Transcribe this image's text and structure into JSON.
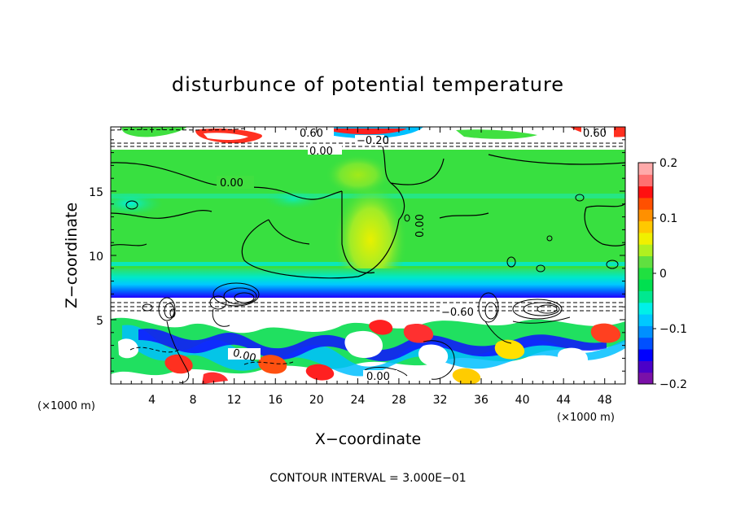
{
  "chart_data": {
    "type": "heatmap",
    "title": "disturbunce of potential temperature",
    "xlabel": "X−coordinate",
    "ylabel": "Z−coordinate",
    "x_unit_label": "(×1000 m)",
    "x_unit_label_right": "(×1000 m)",
    "xlim": [
      0,
      50
    ],
    "ylim": [
      0,
      20
    ],
    "xticks": [
      4,
      8,
      12,
      16,
      20,
      24,
      28,
      32,
      36,
      40,
      44,
      48
    ],
    "yticks": [
      5,
      10,
      15
    ],
    "colorbar": {
      "range": [
        -0.2,
        0.2
      ],
      "ticks": [
        "0.2",
        "0.1",
        "0",
        "−0.1",
        "−0.2"
      ],
      "ticks_values": [
        0.2,
        0.1,
        0,
        -0.1,
        -0.2
      ],
      "colors": [
        "#7a10a8",
        "#4b00c8",
        "#0000ff",
        "#0050ff",
        "#0090ff",
        "#00c8ff",
        "#00f0e8",
        "#00e890",
        "#00e050",
        "#20e040",
        "#60e040",
        "#b0f020",
        "#f0f000",
        "#ffc800",
        "#ff9000",
        "#ff5000",
        "#ff1010",
        "#ff7070",
        "#ffaaaa"
      ]
    },
    "contour_labels": [
      "0.00",
      "0.60",
      "0.00",
      "0.00",
      "−0.60",
      "0.00",
      "0.00",
      "0.60",
      "0.60",
      "−0.20"
    ],
    "footer": "CONTOUR INTERVAL = 3.000E−01"
  }
}
